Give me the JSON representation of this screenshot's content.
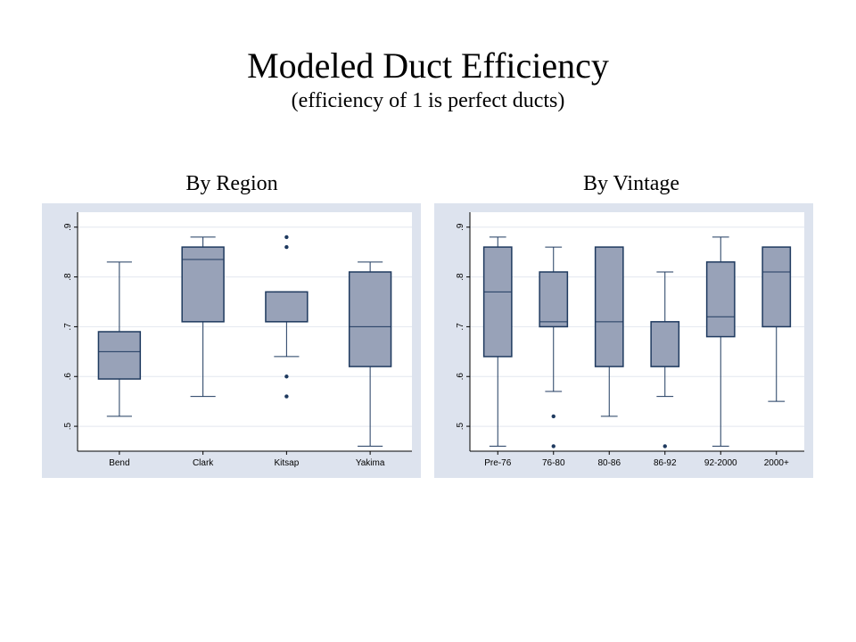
{
  "title": "Modeled Duct Efficiency",
  "subtitle": "(efficiency of 1 is perfect ducts)",
  "chart_data": [
    {
      "type": "box",
      "title": "By Region",
      "ylim": [
        0.45,
        0.93
      ],
      "yticks": [
        0.5,
        0.6,
        0.7,
        0.8,
        0.9
      ],
      "ytick_labels": [
        ".5",
        ".6",
        ".7",
        ".8",
        ".9"
      ],
      "ytick_orientation": "vertical",
      "grid": true,
      "box_color": "#98a2b8",
      "line_color": "#1f3a5f",
      "background_color": "#dde3ee",
      "categories": [
        "Bend",
        "Clark",
        "Kitsap",
        "Yakima"
      ],
      "boxes": [
        {
          "whisker_low": 0.52,
          "q1": 0.595,
          "median": 0.65,
          "q3": 0.69,
          "whisker_high": 0.83,
          "outliers": []
        },
        {
          "whisker_low": 0.56,
          "q1": 0.71,
          "median": 0.835,
          "q3": 0.86,
          "whisker_high": 0.88,
          "outliers": []
        },
        {
          "whisker_low": 0.64,
          "q1": 0.71,
          "median": 0.71,
          "q3": 0.77,
          "whisker_high": 0.77,
          "outliers": [
            0.88,
            0.86,
            0.6,
            0.56
          ]
        },
        {
          "whisker_low": 0.46,
          "q1": 0.62,
          "median": 0.7,
          "q3": 0.81,
          "whisker_high": 0.83,
          "outliers": []
        }
      ]
    },
    {
      "type": "box",
      "title": "By Vintage",
      "ylim": [
        0.45,
        0.93
      ],
      "yticks": [
        0.5,
        0.6,
        0.7,
        0.8,
        0.9
      ],
      "ytick_labels": [
        ".5",
        ".6",
        ".7",
        ".8",
        ".9"
      ],
      "ytick_orientation": "vertical",
      "grid": true,
      "box_color": "#98a2b8",
      "line_color": "#1f3a5f",
      "background_color": "#dde3ee",
      "categories": [
        "Pre-76",
        "76-80",
        "80-86",
        "86-92",
        "92-2000",
        "2000+"
      ],
      "boxes": [
        {
          "whisker_low": 0.46,
          "q1": 0.64,
          "median": 0.77,
          "q3": 0.86,
          "whisker_high": 0.88,
          "outliers": []
        },
        {
          "whisker_low": 0.57,
          "q1": 0.7,
          "median": 0.71,
          "q3": 0.81,
          "whisker_high": 0.86,
          "outliers": [
            0.52,
            0.46
          ]
        },
        {
          "whisker_low": 0.52,
          "q1": 0.62,
          "median": 0.71,
          "q3": 0.86,
          "whisker_high": 0.86,
          "outliers": []
        },
        {
          "whisker_low": 0.56,
          "q1": 0.62,
          "median": 0.62,
          "q3": 0.71,
          "whisker_high": 0.81,
          "outliers": [
            0.46
          ]
        },
        {
          "whisker_low": 0.46,
          "q1": 0.68,
          "median": 0.72,
          "q3": 0.83,
          "whisker_high": 0.88,
          "outliers": []
        },
        {
          "whisker_low": 0.55,
          "q1": 0.7,
          "median": 0.81,
          "q3": 0.86,
          "whisker_high": 0.86,
          "outliers": []
        }
      ]
    }
  ]
}
